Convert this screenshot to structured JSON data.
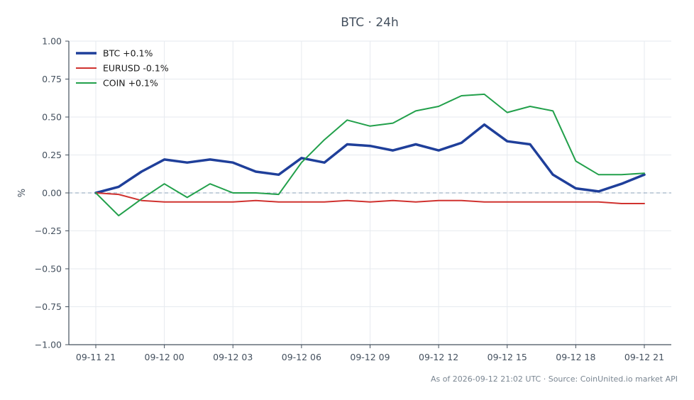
{
  "chart_data": {
    "type": "line",
    "title": "BTC · 24h",
    "ylabel": "%",
    "xlabel": "",
    "ylim": [
      -1.0,
      1.0
    ],
    "yticks": [
      1.0,
      0.75,
      0.5,
      0.25,
      0.0,
      -0.25,
      -0.5,
      -0.75,
      -1.0
    ],
    "ytick_labels": [
      "1.00",
      "0.75",
      "0.50",
      "0.25",
      "0.00",
      "−0.25",
      "−0.50",
      "−0.75",
      "−1.00"
    ],
    "xticks": [
      {
        "at": 0,
        "label": "09-11 21"
      },
      {
        "at": 3,
        "label": "09-12 00"
      },
      {
        "at": 6,
        "label": "09-12 03"
      },
      {
        "at": 9,
        "label": "09-12 06"
      },
      {
        "at": 12,
        "label": "09-12 09"
      },
      {
        "at": 15,
        "label": "09-12 12"
      },
      {
        "at": 18,
        "label": "09-12 15"
      },
      {
        "at": 21,
        "label": "09-12 18"
      },
      {
        "at": 24,
        "label": "09-12 21"
      }
    ],
    "x_count": 25,
    "grid": true,
    "zero_line": true,
    "legend_position": "top-left",
    "series": [
      {
        "name": "BTC +0.1%",
        "color": "#1f3f9a",
        "width": 3.5,
        "values": [
          0.0,
          0.04,
          0.14,
          0.22,
          0.2,
          0.22,
          0.2,
          0.14,
          0.12,
          0.23,
          0.2,
          0.32,
          0.31,
          0.28,
          0.32,
          0.28,
          0.33,
          0.45,
          0.34,
          0.32,
          0.12,
          0.03,
          0.01,
          0.06,
          0.12
        ]
      },
      {
        "name": "EURUSD -0.1%",
        "color": "#d0322f",
        "width": 2,
        "values": [
          0.0,
          -0.01,
          -0.05,
          -0.06,
          -0.06,
          -0.06,
          -0.06,
          -0.05,
          -0.06,
          -0.06,
          -0.06,
          -0.05,
          -0.06,
          -0.05,
          -0.06,
          -0.05,
          -0.05,
          -0.06,
          -0.06,
          -0.06,
          -0.06,
          -0.06,
          -0.06,
          -0.07,
          -0.07
        ]
      },
      {
        "name": "COIN +0.1%",
        "color": "#22a04b",
        "width": 2,
        "values": [
          0.0,
          -0.15,
          -0.04,
          0.06,
          -0.03,
          0.06,
          0.0,
          0.0,
          -0.01,
          0.2,
          0.35,
          0.48,
          0.44,
          0.46,
          0.54,
          0.57,
          0.64,
          0.65,
          0.53,
          0.57,
          0.54,
          0.21,
          0.12,
          0.12,
          0.13
        ]
      }
    ],
    "footer": "As of 2026-09-12 21:02 UTC · Source: CoinUnited.io market API"
  }
}
